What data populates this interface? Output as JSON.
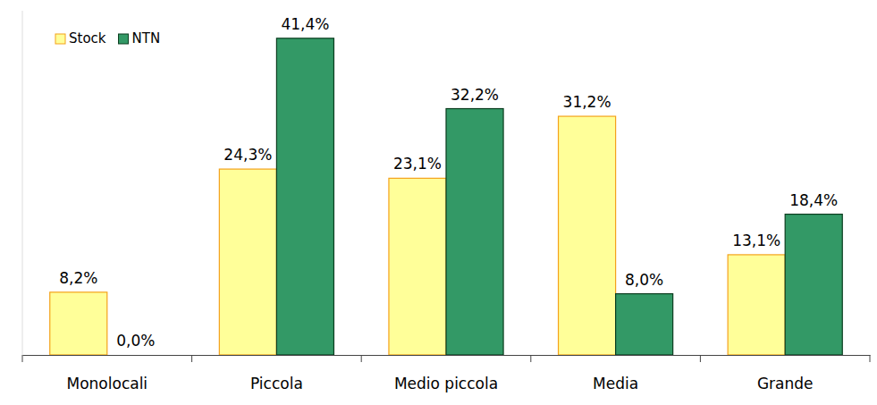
{
  "chart_data": {
    "type": "bar",
    "categories": [
      "Monolocali",
      "Piccola",
      "Medio piccola",
      "Media",
      "Grande"
    ],
    "series": [
      {
        "name": "Stock",
        "color": "#ffff99",
        "values": [
          8.2,
          24.3,
          23.1,
          31.2,
          13.1
        ],
        "value_labels": [
          "8,2%",
          "24,3%",
          "23,1%",
          "31,2%",
          "13,1%"
        ]
      },
      {
        "name": "NTN",
        "color": "#339966",
        "values": [
          0.0,
          41.4,
          32.2,
          8.0,
          18.4
        ],
        "value_labels": [
          "0,0%",
          "41,4%",
          "32,2%",
          "8,0%",
          "18,4%"
        ]
      }
    ],
    "ylim": [
      0,
      45
    ],
    "legend": "top-left",
    "data_labels": true,
    "tick_labels": "x",
    "grid": false
  }
}
